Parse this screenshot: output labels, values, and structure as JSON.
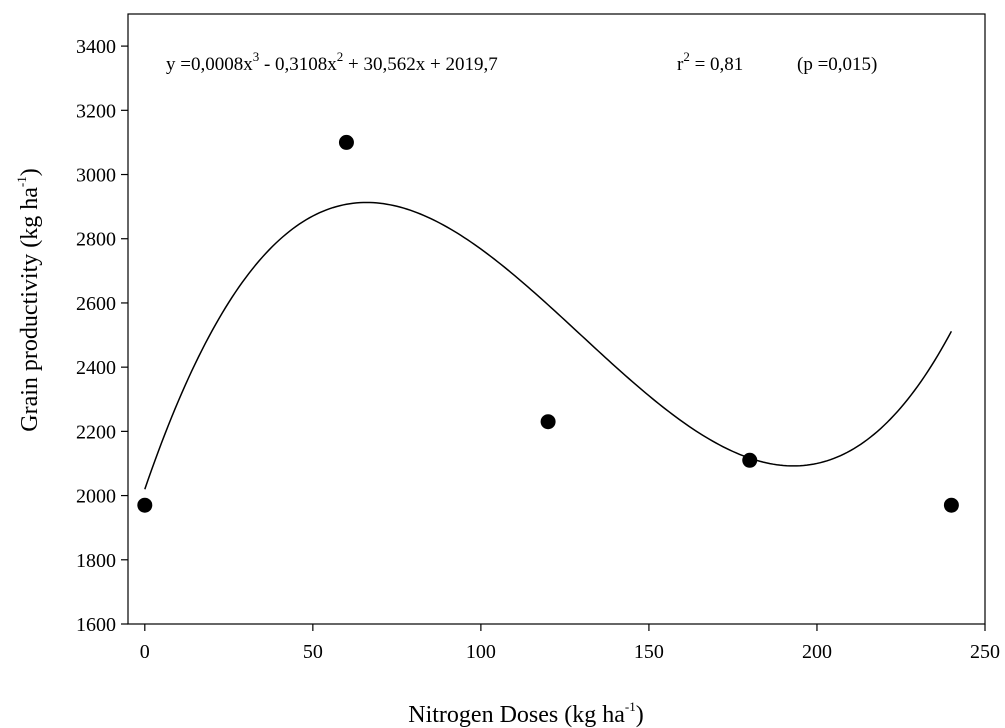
{
  "chart_data": {
    "type": "scatter",
    "xlabel": "Nitrogen Doses (kg ha",
    "xlabel_sup": "-1",
    "xlabel_close": ")",
    "ylabel": "Grain productivity (kg ha",
    "ylabel_sup": "-1",
    "ylabel_close": ")",
    "xlim": [
      -5,
      250
    ],
    "ylim": [
      1600,
      3500
    ],
    "x_ticks": [
      0,
      50,
      100,
      150,
      200,
      250
    ],
    "y_ticks": [
      1600,
      1800,
      2000,
      2200,
      2400,
      2600,
      2800,
      3000,
      3200,
      3400
    ],
    "points": [
      {
        "x": 0,
        "y": 1970
      },
      {
        "x": 60,
        "y": 3100
      },
      {
        "x": 120,
        "y": 2230
      },
      {
        "x": 180,
        "y": 2110
      },
      {
        "x": 240,
        "y": 1970
      }
    ],
    "fit": {
      "type": "cubic",
      "coefficients": {
        "a3": 0.0008,
        "a2": -0.3108,
        "a1": 30.562,
        "a0": 2019.7
      },
      "x_range": [
        0,
        240
      ]
    },
    "annotations": {
      "equation_parts": [
        "y =0,0008x",
        "3",
        " - 0,3108x",
        "2",
        " + 30,562x + 2019,7"
      ],
      "r2_parts": [
        "r",
        "2",
        " = 0,81"
      ],
      "p_text": "(p =0,015)"
    },
    "grid": false,
    "legend": "none"
  }
}
